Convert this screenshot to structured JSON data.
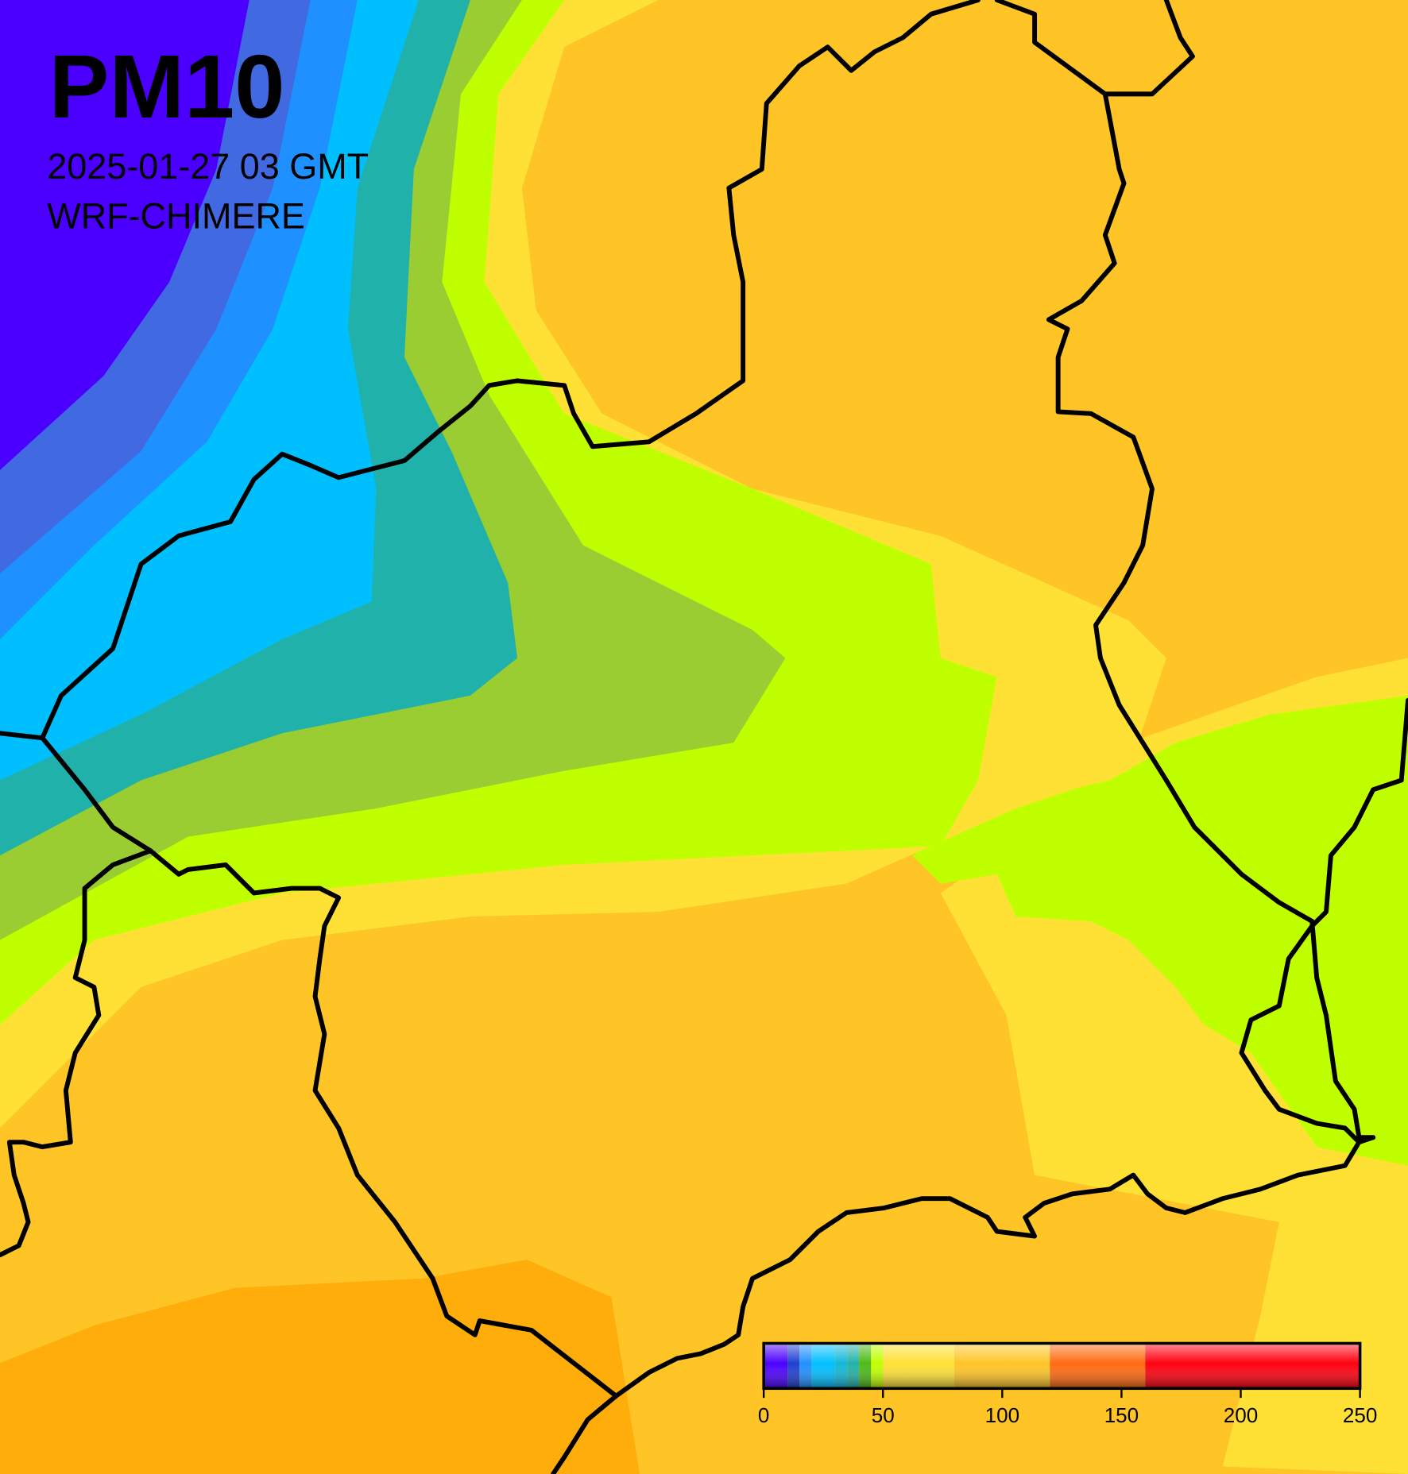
{
  "title": "PM10",
  "timestamp": "2025-01-27 03 GMT",
  "model": "WRF-CHIMERE",
  "colorbar": {
    "lim": [
      0,
      250
    ],
    "ticks": [
      0,
      50,
      100,
      150,
      200,
      250
    ],
    "levels": [
      0,
      10,
      15,
      20,
      30,
      35,
      40,
      45,
      50,
      80,
      120,
      160,
      250
    ],
    "colors": [
      "#4b00ff",
      "#1e3fd0",
      "#1e90ff",
      "#00bfff",
      "#11b8d8",
      "#20b2aa",
      "#4cbb17",
      "#c0ff00",
      "#ffe135",
      "#ffc425",
      "#ff6a10",
      "#ff0010"
    ]
  }
}
